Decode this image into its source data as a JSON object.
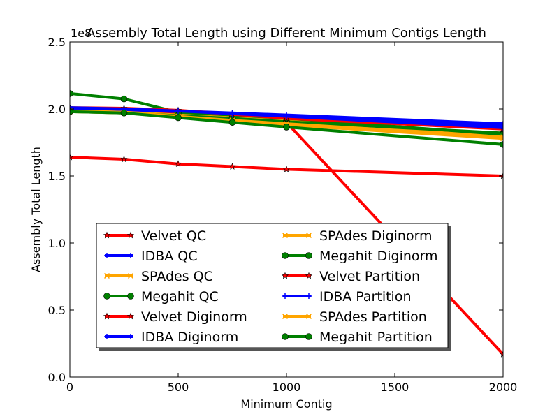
{
  "chart_data": {
    "type": "line",
    "title": "Assembly Total Length using Different Minimum Contigs Length",
    "xlabel": "Minimum Contig",
    "ylabel": "Assembly Total Length",
    "y_offset_label": "1e8",
    "xlim": [
      0,
      2000
    ],
    "ylim": [
      0.0,
      2.5
    ],
    "x_ticks": [
      0,
      500,
      1000,
      1500,
      2000
    ],
    "y_ticks": [
      0.0,
      0.5,
      1.0,
      1.5,
      2.0,
      2.5
    ],
    "x_tick_labels": [
      "0",
      "500",
      "1000",
      "1500",
      "2000"
    ],
    "y_tick_labels": [
      "0.0",
      "0.5",
      "1.0",
      "1.5",
      "2.0",
      "2.5"
    ],
    "grid": false,
    "legend_position": "lower-center",
    "legend_columns": 2,
    "series": [
      {
        "name": "Velvet QC",
        "color": "#ff0000",
        "marker": "star",
        "x": [
          0,
          250,
          500,
          750,
          1000,
          2000
        ],
        "y": [
          2.0,
          1.995,
          1.97,
          1.935,
          1.9,
          0.17
        ]
      },
      {
        "name": "IDBA QC",
        "color": "#0000ff",
        "marker": "plus",
        "x": [
          0,
          250,
          500,
          750,
          1000,
          2000
        ],
        "y": [
          2.0,
          1.995,
          1.98,
          1.965,
          1.95,
          1.88
        ]
      },
      {
        "name": "SPAdes QC",
        "color": "#ffa500",
        "marker": "x",
        "x": [
          0,
          250,
          500,
          750,
          1000,
          2000
        ],
        "y": [
          1.985,
          1.975,
          1.955,
          1.935,
          1.91,
          1.8
        ]
      },
      {
        "name": "Megahit QC",
        "color": "#008000",
        "marker": "circle",
        "x": [
          0,
          250,
          500,
          750,
          1000,
          2000
        ],
        "y": [
          1.98,
          1.97,
          1.95,
          1.93,
          1.905,
          1.82
        ]
      },
      {
        "name": "Velvet Diginorm",
        "color": "#ff0000",
        "marker": "star",
        "x": [
          0,
          250,
          500,
          750,
          1000,
          2000
        ],
        "y": [
          1.64,
          1.625,
          1.59,
          1.57,
          1.55,
          1.5
        ]
      },
      {
        "name": "IDBA Diginorm",
        "color": "#0000ff",
        "marker": "plus",
        "x": [
          0,
          250,
          500,
          750,
          1000,
          2000
        ],
        "y": [
          2.005,
          2.0,
          1.985,
          1.97,
          1.955,
          1.89
        ]
      },
      {
        "name": "SPAdes Diginorm",
        "color": "#ffa500",
        "marker": "x",
        "x": [
          0,
          250,
          500,
          750,
          1000,
          2000
        ],
        "y": [
          1.98,
          1.97,
          1.94,
          1.91,
          1.88,
          1.78
        ]
      },
      {
        "name": "Megahit Diginorm",
        "color": "#008000",
        "marker": "circle",
        "x": [
          0,
          250,
          500,
          750,
          1000,
          2000
        ],
        "y": [
          2.115,
          2.075,
          1.975,
          1.955,
          1.93,
          1.81
        ]
      },
      {
        "name": "Velvet Partition",
        "color": "#ff0000",
        "marker": "star",
        "x": [
          0,
          250,
          500,
          750,
          1000,
          2000
        ],
        "y": [
          2.01,
          2.005,
          1.99,
          1.96,
          1.93,
          1.85
        ]
      },
      {
        "name": "IDBA Partition",
        "color": "#0000ff",
        "marker": "plus",
        "x": [
          0,
          250,
          500,
          750,
          1000,
          2000
        ],
        "y": [
          2.01,
          2.0,
          1.985,
          1.965,
          1.945,
          1.86
        ]
      },
      {
        "name": "SPAdes Partition",
        "color": "#ffa500",
        "marker": "x",
        "x": [
          0,
          250,
          500,
          750,
          1000,
          2000
        ],
        "y": [
          1.985,
          1.975,
          1.945,
          1.915,
          1.89,
          1.79
        ]
      },
      {
        "name": "Megahit Partition",
        "color": "#008000",
        "marker": "circle",
        "x": [
          0,
          250,
          500,
          750,
          1000,
          2000
        ],
        "y": [
          1.98,
          1.97,
          1.935,
          1.9,
          1.865,
          1.735
        ]
      }
    ]
  }
}
